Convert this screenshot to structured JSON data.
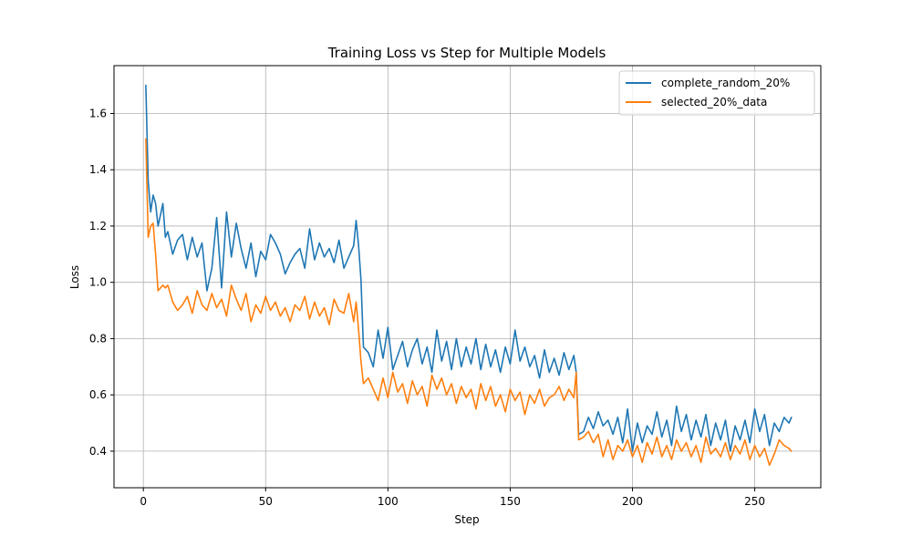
{
  "chart_data": {
    "type": "line",
    "title": "Training Loss vs Step for Multiple Models",
    "xlabel": "Step",
    "ylabel": "Loss",
    "xlim": [
      -12,
      277
    ],
    "ylim": [
      0.27,
      1.77
    ],
    "xticks": [
      0,
      50,
      100,
      150,
      200,
      250
    ],
    "yticks": [
      0.4,
      0.6,
      0.8,
      1.0,
      1.2,
      1.4,
      1.6
    ],
    "ytick_labels": [
      "0.4",
      "0.6",
      "0.8",
      "1.0",
      "1.2",
      "1.4",
      "1.6"
    ],
    "grid": true,
    "legend_position": "top-right",
    "series": [
      {
        "name": "complete_random_20%",
        "color": "#1f77b4",
        "x": [
          1,
          2,
          3,
          4,
          5,
          6,
          7,
          8,
          9,
          10,
          12,
          14,
          16,
          18,
          20,
          22,
          24,
          26,
          28,
          30,
          32,
          34,
          36,
          38,
          40,
          42,
          44,
          46,
          48,
          50,
          52,
          54,
          56,
          58,
          60,
          62,
          64,
          66,
          68,
          70,
          72,
          74,
          76,
          78,
          80,
          82,
          84,
          86,
          87,
          88,
          89,
          90,
          92,
          94,
          96,
          98,
          100,
          102,
          104,
          106,
          108,
          110,
          112,
          114,
          116,
          118,
          120,
          122,
          124,
          126,
          128,
          130,
          132,
          134,
          136,
          138,
          140,
          142,
          144,
          146,
          148,
          150,
          152,
          154,
          156,
          158,
          160,
          162,
          164,
          166,
          168,
          170,
          172,
          174,
          176,
          177,
          178,
          180,
          182,
          184,
          186,
          188,
          190,
          192,
          194,
          196,
          198,
          200,
          202,
          204,
          206,
          208,
          210,
          212,
          214,
          216,
          218,
          220,
          222,
          224,
          226,
          228,
          230,
          232,
          234,
          236,
          238,
          240,
          242,
          244,
          246,
          248,
          250,
          252,
          254,
          256,
          258,
          260,
          262,
          264,
          265
        ],
        "y": [
          1.7,
          1.36,
          1.25,
          1.31,
          1.28,
          1.2,
          1.24,
          1.28,
          1.16,
          1.18,
          1.1,
          1.15,
          1.17,
          1.08,
          1.16,
          1.09,
          1.14,
          0.97,
          1.05,
          1.23,
          0.98,
          1.25,
          1.09,
          1.21,
          1.12,
          1.05,
          1.14,
          1.02,
          1.11,
          1.08,
          1.17,
          1.14,
          1.1,
          1.03,
          1.07,
          1.1,
          1.12,
          1.05,
          1.19,
          1.08,
          1.14,
          1.09,
          1.12,
          1.07,
          1.15,
          1.05,
          1.09,
          1.13,
          1.22,
          1.13,
          1.01,
          0.77,
          0.75,
          0.7,
          0.83,
          0.73,
          0.84,
          0.69,
          0.74,
          0.79,
          0.7,
          0.76,
          0.8,
          0.71,
          0.77,
          0.68,
          0.83,
          0.72,
          0.79,
          0.69,
          0.8,
          0.7,
          0.77,
          0.71,
          0.8,
          0.69,
          0.78,
          0.7,
          0.76,
          0.68,
          0.77,
          0.71,
          0.83,
          0.72,
          0.77,
          0.7,
          0.74,
          0.66,
          0.76,
          0.68,
          0.73,
          0.67,
          0.75,
          0.69,
          0.74,
          0.68,
          0.46,
          0.47,
          0.52,
          0.48,
          0.54,
          0.49,
          0.51,
          0.46,
          0.52,
          0.43,
          0.55,
          0.4,
          0.5,
          0.43,
          0.49,
          0.46,
          0.54,
          0.45,
          0.51,
          0.42,
          0.56,
          0.47,
          0.53,
          0.44,
          0.51,
          0.45,
          0.53,
          0.42,
          0.5,
          0.44,
          0.51,
          0.4,
          0.49,
          0.44,
          0.51,
          0.43,
          0.55,
          0.47,
          0.53,
          0.42,
          0.5,
          0.47,
          0.52,
          0.5,
          0.52
        ]
      },
      {
        "name": "selected_20%_data",
        "color": "#ff7f0e",
        "x": [
          1,
          2,
          3,
          4,
          5,
          6,
          7,
          8,
          9,
          10,
          12,
          14,
          16,
          18,
          20,
          22,
          24,
          26,
          28,
          30,
          32,
          34,
          36,
          38,
          40,
          42,
          44,
          46,
          48,
          50,
          52,
          54,
          56,
          58,
          60,
          62,
          64,
          66,
          68,
          70,
          72,
          74,
          76,
          78,
          80,
          82,
          84,
          86,
          87,
          88,
          89,
          90,
          92,
          94,
          96,
          98,
          100,
          102,
          104,
          106,
          108,
          110,
          112,
          114,
          116,
          118,
          120,
          122,
          124,
          126,
          128,
          130,
          132,
          134,
          136,
          138,
          140,
          142,
          144,
          146,
          148,
          150,
          152,
          154,
          156,
          158,
          160,
          162,
          164,
          166,
          168,
          170,
          172,
          174,
          176,
          177,
          178,
          180,
          182,
          184,
          186,
          188,
          190,
          192,
          194,
          196,
          198,
          200,
          202,
          204,
          206,
          208,
          210,
          212,
          214,
          216,
          218,
          220,
          222,
          224,
          226,
          228,
          230,
          232,
          234,
          236,
          238,
          240,
          242,
          244,
          246,
          248,
          250,
          252,
          254,
          256,
          258,
          260,
          262,
          264,
          265
        ],
        "y": [
          1.51,
          1.16,
          1.2,
          1.21,
          1.1,
          0.97,
          0.98,
          0.99,
          0.98,
          0.99,
          0.93,
          0.9,
          0.92,
          0.95,
          0.89,
          0.97,
          0.92,
          0.9,
          0.96,
          0.91,
          0.94,
          0.88,
          0.99,
          0.94,
          0.9,
          0.96,
          0.86,
          0.92,
          0.89,
          0.95,
          0.9,
          0.93,
          0.88,
          0.91,
          0.86,
          0.92,
          0.9,
          0.95,
          0.87,
          0.93,
          0.88,
          0.91,
          0.85,
          0.94,
          0.9,
          0.89,
          0.96,
          0.86,
          0.93,
          0.83,
          0.72,
          0.64,
          0.66,
          0.62,
          0.58,
          0.66,
          0.59,
          0.68,
          0.61,
          0.64,
          0.57,
          0.65,
          0.6,
          0.63,
          0.56,
          0.67,
          0.62,
          0.66,
          0.6,
          0.64,
          0.57,
          0.63,
          0.59,
          0.62,
          0.55,
          0.64,
          0.58,
          0.63,
          0.56,
          0.6,
          0.54,
          0.62,
          0.58,
          0.61,
          0.53,
          0.6,
          0.57,
          0.62,
          0.56,
          0.59,
          0.6,
          0.63,
          0.58,
          0.62,
          0.59,
          0.68,
          0.44,
          0.45,
          0.47,
          0.43,
          0.46,
          0.38,
          0.44,
          0.37,
          0.42,
          0.4,
          0.44,
          0.38,
          0.42,
          0.36,
          0.43,
          0.39,
          0.45,
          0.38,
          0.42,
          0.37,
          0.44,
          0.4,
          0.43,
          0.38,
          0.42,
          0.36,
          0.45,
          0.39,
          0.41,
          0.38,
          0.43,
          0.37,
          0.42,
          0.39,
          0.44,
          0.37,
          0.42,
          0.38,
          0.41,
          0.35,
          0.39,
          0.44,
          0.42,
          0.41,
          0.4
        ]
      }
    ]
  }
}
